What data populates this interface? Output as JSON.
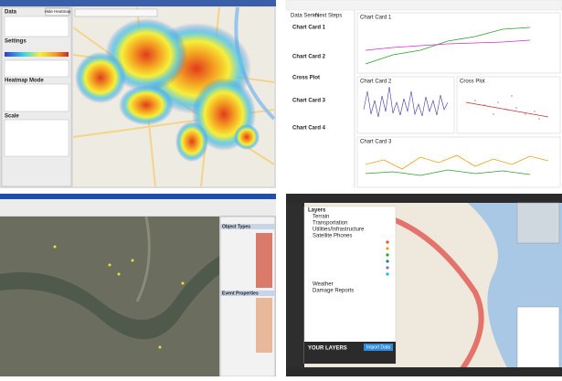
{
  "heatmap_app": {
    "sections": [
      "Data",
      "Settings",
      "Heatmap Mode",
      "Scale"
    ],
    "button": "Hide Heatmap"
  },
  "chart_dashboard": {
    "tabs": [
      "Data Series",
      "Next Steps"
    ],
    "list": [
      "Chart Card 1",
      "Chart Card 2",
      "Cross Plot",
      "Chart Card 3",
      "Chart Card 4"
    ],
    "panels": [
      "Chart Card 1",
      "Chart Card 2",
      "Cross Plot",
      "Chart Card 3"
    ]
  },
  "gis_app": {
    "panels": [
      "Object Types",
      "Event Properties"
    ]
  },
  "layers_map": {
    "header": "Layers",
    "layers": [
      "Terrain",
      "Transportation",
      "Utilities/Infrastructure",
      "Satellite Phones",
      "Weather",
      "Damage Reports"
    ],
    "your_layers": "YOUR LAYERS",
    "button": "Import Data"
  }
}
